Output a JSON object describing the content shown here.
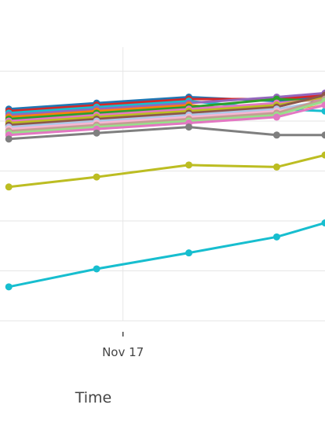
{
  "chart_data": {
    "type": "line",
    "xlabel": "Time",
    "ylabel": "",
    "x_tick_labels": [
      {
        "label": "Nov 17",
        "x": 17
      }
    ],
    "xlim": [
      15.6,
      19.3
    ],
    "ylim": [
      0,
      1.37
    ],
    "grid": true,
    "x": [
      15.7,
      16.7,
      17.75,
      18.75,
      19.3
    ],
    "series": [
      {
        "color": "#1f77b4",
        "values": [
          1.06,
          1.09,
          1.12,
          1.1,
          1.12
        ]
      },
      {
        "color": "#d62728",
        "values": [
          1.05,
          1.08,
          1.11,
          1.11,
          1.13
        ]
      },
      {
        "color": "#17becf",
        "values": [
          1.04,
          1.07,
          1.1,
          1.06,
          1.05
        ]
      },
      {
        "color": "#9467bd",
        "values": [
          1.03,
          1.06,
          1.09,
          1.12,
          1.14
        ]
      },
      {
        "color": "#ff7f0e",
        "values": [
          1.02,
          1.05,
          1.08,
          1.04,
          1.09
        ]
      },
      {
        "color": "#2ca02c",
        "values": [
          1.01,
          1.04,
          1.07,
          1.11,
          1.1
        ]
      },
      {
        "color": "#e377c2",
        "values": [
          1.0,
          1.03,
          1.06,
          1.09,
          1.11
        ]
      },
      {
        "color": "#bcbd22",
        "values": [
          0.99,
          1.02,
          1.05,
          1.08,
          1.12
        ]
      },
      {
        "color": "#8c564b",
        "values": [
          0.98,
          1.01,
          1.04,
          1.07,
          1.13
        ]
      },
      {
        "color": "#aec7e8",
        "values": [
          0.97,
          1.0,
          1.03,
          1.06,
          1.1
        ]
      },
      {
        "color": "#f7b6d2",
        "values": [
          0.96,
          0.99,
          1.02,
          1.05,
          1.09
        ]
      },
      {
        "color": "#c49c94",
        "values": [
          0.95,
          0.98,
          1.01,
          1.04,
          1.11
        ]
      },
      {
        "color": "#98df8a",
        "values": [
          0.94,
          0.97,
          1.0,
          1.03,
          1.1
        ]
      },
      {
        "color": "#e377c2",
        "values": [
          0.93,
          0.96,
          0.99,
          1.02,
          1.08
        ]
      },
      {
        "color": "#7f7f7f",
        "values": [
          0.91,
          0.94,
          0.97,
          0.93,
          0.93
        ]
      },
      {
        "color": "#bcbd22",
        "values": [
          0.67,
          0.72,
          0.78,
          0.77,
          0.83
        ]
      },
      {
        "color": "#17becf",
        "values": [
          0.17,
          0.26,
          0.34,
          0.42,
          0.49
        ]
      }
    ]
  }
}
